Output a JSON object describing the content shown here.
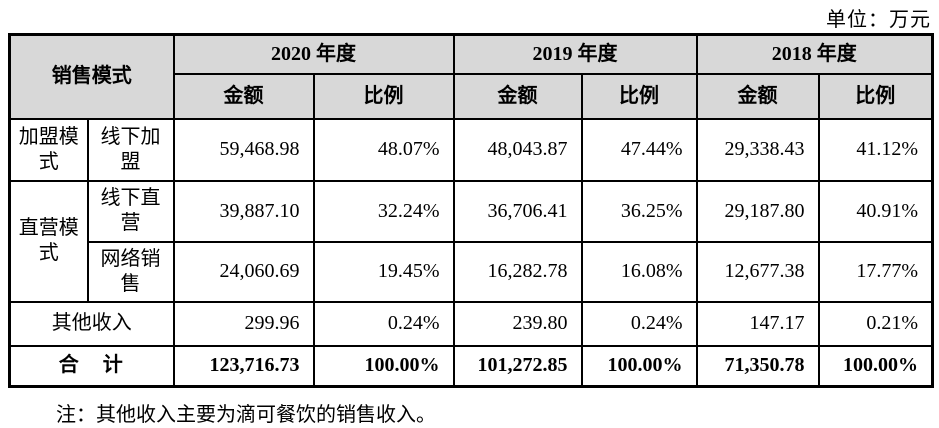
{
  "unit_label": "单位：万元",
  "note": "注：其他收入主要为滴可餐饮的销售收入。",
  "table": {
    "corner_header": "销售模式",
    "year_headers": [
      "2020 年度",
      "2019 年度",
      "2018 年度"
    ],
    "amount_label": "金额",
    "ratio_label": "比例",
    "rows": [
      {
        "group": "加盟模式",
        "sub": "线下加盟",
        "values": [
          "59,468.98",
          "48.07%",
          "48,043.87",
          "47.44%",
          "29,338.43",
          "41.12%"
        ]
      },
      {
        "group": "直营模式",
        "sub": "线下直营",
        "values": [
          "39,887.10",
          "32.24%",
          "36,706.41",
          "36.25%",
          "29,187.80",
          "40.91%"
        ]
      },
      {
        "sub": "网络销售",
        "values": [
          "24,060.69",
          "19.45%",
          "16,282.78",
          "16.08%",
          "12,677.38",
          "17.77%"
        ]
      },
      {
        "label": "其他收入",
        "values": [
          "299.96",
          "0.24%",
          "239.80",
          "0.24%",
          "147.17",
          "0.21%"
        ]
      },
      {
        "label": "合　计",
        "values": [
          "123,716.73",
          "100.00%",
          "101,272.85",
          "100.00%",
          "71,350.78",
          "100.00%"
        ]
      }
    ]
  },
  "chart_data": {
    "type": "table",
    "title": "销售模式收入构成",
    "unit": "万元",
    "row_labels": [
      "加盟模式-线下加盟",
      "直营模式-线下直营",
      "直营模式-网络销售",
      "其他收入",
      "合计"
    ],
    "series": [
      {
        "name": "2020年度-金额",
        "values": [
          59468.98,
          39887.1,
          24060.69,
          299.96,
          123716.73
        ]
      },
      {
        "name": "2020年度-比例",
        "values": [
          "48.07%",
          "32.24%",
          "19.45%",
          "0.24%",
          "100.00%"
        ]
      },
      {
        "name": "2019年度-金额",
        "values": [
          48043.87,
          36706.41,
          16282.78,
          239.8,
          101272.85
        ]
      },
      {
        "name": "2019年度-比例",
        "values": [
          "47.44%",
          "36.25%",
          "16.08%",
          "0.24%",
          "100.00%"
        ]
      },
      {
        "name": "2018年度-金额",
        "values": [
          29338.43,
          29187.8,
          12677.38,
          147.17,
          71350.78
        ]
      },
      {
        "name": "2018年度-比例",
        "values": [
          "41.12%",
          "40.91%",
          "17.77%",
          "0.21%",
          "100.00%"
        ]
      }
    ]
  }
}
